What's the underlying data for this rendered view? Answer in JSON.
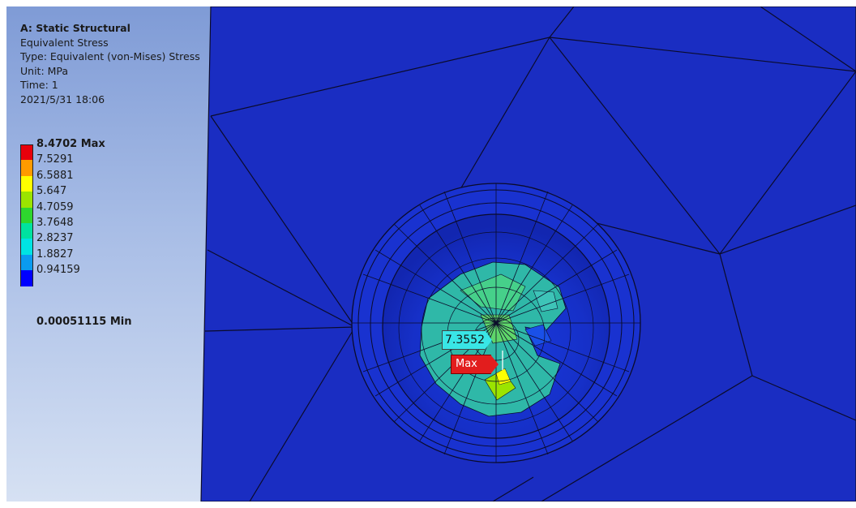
{
  "result": {
    "analysis": "A: Static Structural",
    "name": "Equivalent Stress",
    "type": "Type: Equivalent (von-Mises) Stress",
    "unit": "Unit: MPa",
    "time": "Time: 1",
    "date": "2021/5/31 18:06"
  },
  "legend": {
    "max_label": "8.4702 Max",
    "values": [
      "7.5291",
      "6.5881",
      "5.647",
      "4.7059",
      "3.7648",
      "2.8237",
      "1.8827",
      "0.94159"
    ],
    "min_label": "0.00051115 Min",
    "colors": [
      "#e8000b",
      "#ff9b00",
      "#ffff00",
      "#9be400",
      "#2ed62e",
      "#00e2a0",
      "#00e3e3",
      "#0a9bf0",
      "#0000ff"
    ]
  },
  "probe": {
    "value": "7.3552",
    "color": "#39e6e6"
  },
  "max_marker": {
    "label": "Max",
    "color": "#e21d1d"
  },
  "model_colors": {
    "background": "#1a2dc2",
    "mesh_lines": "#0b0b2a"
  }
}
